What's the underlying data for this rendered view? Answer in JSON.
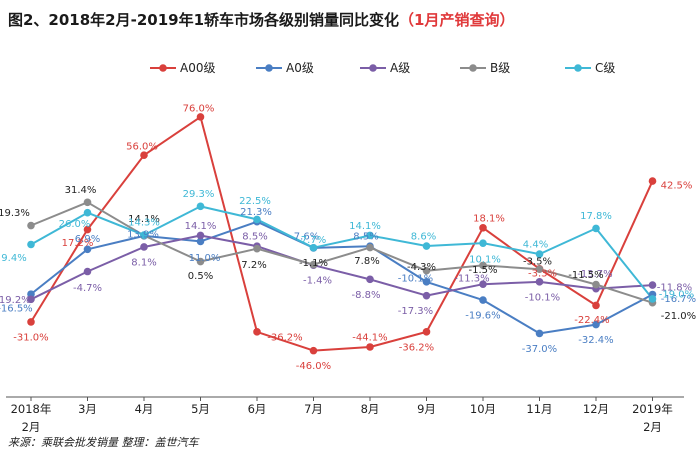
{
  "chart_data": {
    "type": "line",
    "title": "图2、2018年2月-2019年1轿车市场各级别销量同比变化",
    "subtitle": "（1月产销查询）",
    "categories": [
      "2018年2月",
      "3月",
      "4月",
      "5月",
      "6月",
      "7月",
      "8月",
      "9月",
      "10月",
      "11月",
      "12月",
      "2019年2月"
    ],
    "series": [
      {
        "name": "A00级",
        "color": "#d9403c",
        "values": [
          -31.0,
          17.2,
          56.0,
          76.0,
          -36.2,
          -46.0,
          -44.1,
          -36.2,
          18.1,
          -3.3,
          -22.4,
          42.5
        ],
        "labels": [
          "-31.0%",
          "17.2%",
          "56.0%",
          "76.0%",
          "-36.2%",
          "-46.0%",
          "-44.1%",
          "-36.2%",
          "18.1%",
          "-3.3%",
          "-22.4%",
          "42.5%"
        ]
      },
      {
        "name": "A0级",
        "color": "#4a7ec3",
        "values": [
          -16.5,
          6.9,
          13.9,
          11.0,
          21.3,
          7.6,
          8.5,
          -10.1,
          -19.6,
          -37.0,
          -32.4,
          -16.7
        ],
        "labels": [
          "-16.5%",
          "6.9%",
          "13.9%",
          "11.0%",
          "21.3%",
          "7.6%",
          "8.5%",
          "-10.1%",
          "-19.6%",
          "-37.0%",
          "-32.4%",
          "-16.7%"
        ]
      },
      {
        "name": "A级",
        "color": "#7b5ea7",
        "values": [
          -19.2,
          -4.7,
          8.1,
          14.1,
          8.5,
          -1.4,
          -8.8,
          -17.3,
          -11.3,
          -10.1,
          -13.7,
          -11.8
        ],
        "labels": [
          "-19.2%",
          "-4.7%",
          "8.1%",
          "14.1%",
          "8.5%",
          "-1.4%",
          "-8.8%",
          "-17.3%",
          "-11.3%",
          "-10.1%",
          "-13.7%",
          "-11.8%"
        ]
      },
      {
        "name": "B级",
        "color": "#8c8c8c",
        "values": [
          19.3,
          31.4,
          14.1,
          0.5,
          7.2,
          -1.1,
          7.8,
          -4.3,
          -1.5,
          -3.5,
          -11.5,
          -21.0
        ],
        "labels": [
          "19.3%",
          "31.4%",
          "14.1%",
          "0.5%",
          "7.2%",
          "-1.1%",
          "7.8%",
          "-4.3%",
          "-1.5%",
          "-3.5%",
          "-11.5%",
          "-21.0%"
        ]
      },
      {
        "name": "C级",
        "color": "#3fb8d6",
        "values": [
          9.4,
          26.0,
          14.3,
          29.3,
          22.5,
          7.7,
          14.1,
          8.6,
          10.1,
          4.4,
          17.8,
          -19.0
        ],
        "labels": [
          "9.4%",
          "26.0%",
          "14.3%",
          "29.3%",
          "22.5%",
          "7.7%",
          "14.1%",
          "8.6%",
          "10.1%",
          "4.4%",
          "17.8%",
          "-19.0%"
        ]
      }
    ],
    "ylim": [
      -53,
      90
    ],
    "grid": false,
    "legend": "top",
    "source": "来源：乘联会批发销量 整理：盖世汽车"
  }
}
